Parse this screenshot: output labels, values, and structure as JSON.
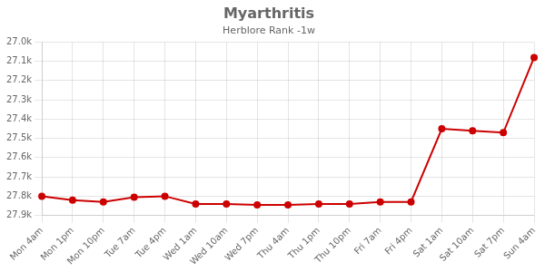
{
  "chart_data": {
    "type": "line",
    "title": "Myarthritis",
    "subtitle": "Herblore Rank -1w",
    "categories": [
      "Mon 4am",
      "Mon 1pm",
      "Mon 10pm",
      "Tue 7am",
      "Tue 4pm",
      "Wed 1am",
      "Wed 10am",
      "Wed 7pm",
      "Thu 4am",
      "Thu 1pm",
      "Thu 10pm",
      "Fri 7am",
      "Fri 4pm",
      "Sat 1am",
      "Sat 10am",
      "Sat 7pm",
      "Sun 4am"
    ],
    "values": [
      27800,
      27820,
      27830,
      27805,
      27800,
      27840,
      27840,
      27845,
      27845,
      27840,
      27840,
      27830,
      27830,
      27450,
      27460,
      27470,
      27080
    ],
    "color": "#cc0000",
    "marker": "circle",
    "ylim": [
      27900,
      27000
    ],
    "yticks": [
      {
        "value": 27000,
        "label": "27.0k"
      },
      {
        "value": 27100,
        "label": "27.1k"
      },
      {
        "value": 27200,
        "label": "27.2k"
      },
      {
        "value": 27300,
        "label": "27.3k"
      },
      {
        "value": 27400,
        "label": "27.4k"
      },
      {
        "value": 27500,
        "label": "27.5k"
      },
      {
        "value": 27600,
        "label": "27.6k"
      },
      {
        "value": 27700,
        "label": "27.7k"
      },
      {
        "value": 27800,
        "label": "27.8k"
      },
      {
        "value": 27900,
        "label": "27.9k"
      }
    ],
    "grid": true
  }
}
